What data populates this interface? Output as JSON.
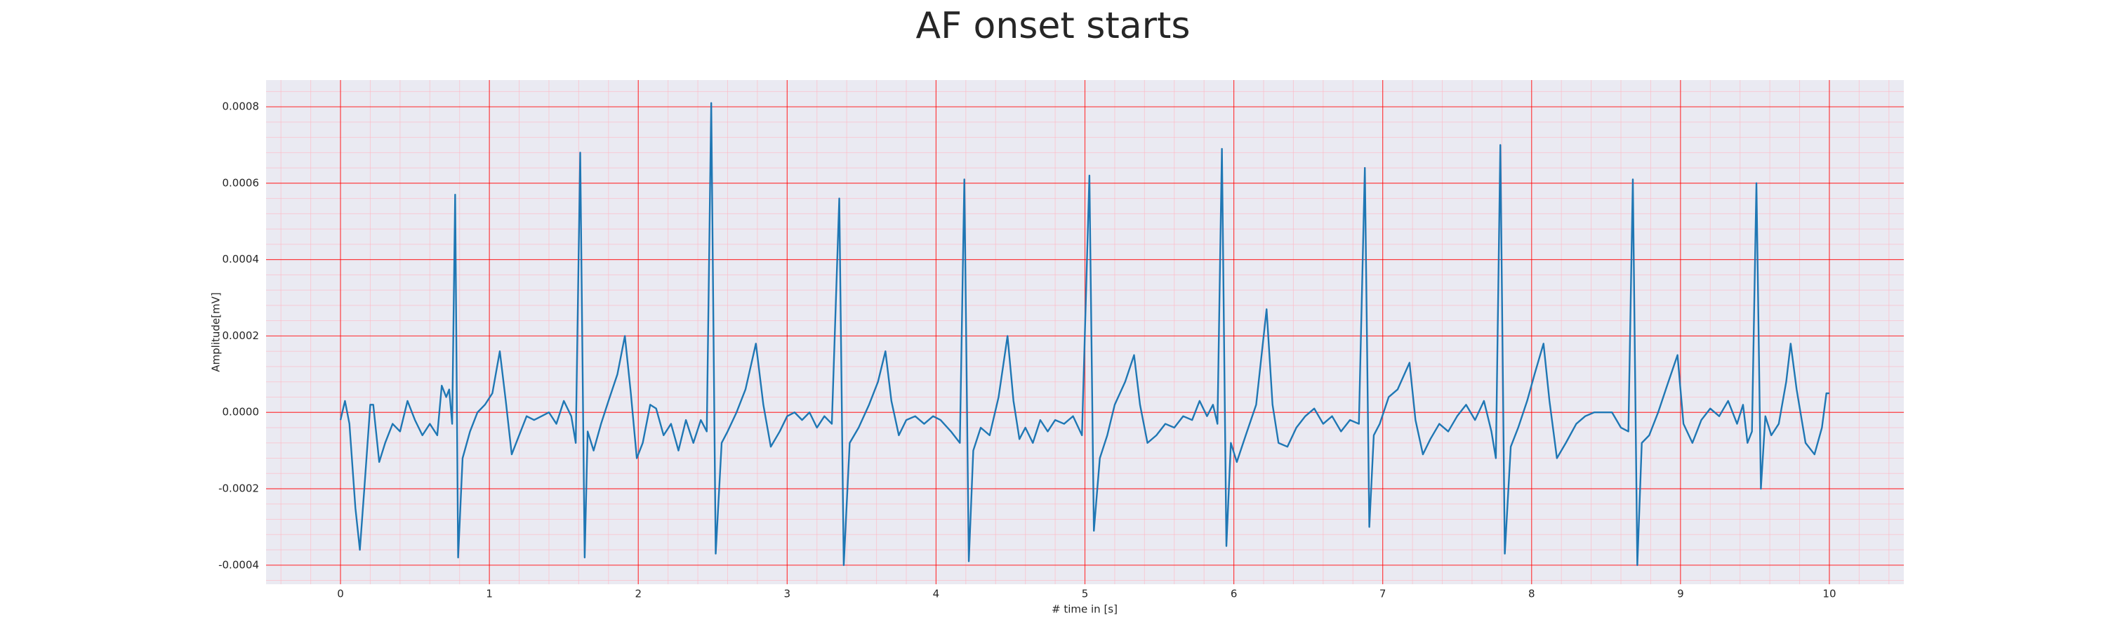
{
  "chart_data": {
    "type": "line",
    "title": "AF onset starts",
    "xlabel": "# time in [s]",
    "ylabel": "Amplitude[mV]",
    "color": "#1f77b4",
    "grid": true,
    "xlim": [
      -0.5,
      10.5
    ],
    "ylim": [
      -0.00045,
      0.00087
    ],
    "xticks": [
      0,
      1,
      2,
      3,
      4,
      5,
      6,
      7,
      8,
      9,
      10
    ],
    "yticks": [
      -0.0004,
      -0.0002,
      {
        "value": 0,
        "label": "0.0000"
      },
      0.0002,
      0.0004,
      0.0006,
      0.0008
    ],
    "x": [
      0.0,
      0.03,
      0.06,
      0.1,
      0.13,
      0.16,
      0.2,
      0.22,
      0.26,
      0.3,
      0.35,
      0.4,
      0.45,
      0.5,
      0.55,
      0.6,
      0.65,
      0.68,
      0.71,
      0.73,
      0.75,
      0.77,
      0.79,
      0.82,
      0.87,
      0.92,
      0.97,
      1.02,
      1.07,
      1.11,
      1.15,
      1.2,
      1.25,
      1.3,
      1.35,
      1.4,
      1.45,
      1.5,
      1.55,
      1.58,
      1.61,
      1.64,
      1.66,
      1.7,
      1.75,
      1.8,
      1.86,
      1.91,
      1.95,
      1.99,
      2.03,
      2.08,
      2.12,
      2.17,
      2.22,
      2.27,
      2.32,
      2.37,
      2.42,
      2.46,
      2.49,
      2.52,
      2.56,
      2.6,
      2.66,
      2.72,
      2.79,
      2.84,
      2.89,
      2.95,
      3.0,
      3.05,
      3.1,
      3.15,
      3.2,
      3.25,
      3.3,
      3.35,
      3.38,
      3.42,
      3.48,
      3.55,
      3.61,
      3.66,
      3.7,
      3.75,
      3.8,
      3.86,
      3.92,
      3.98,
      4.03,
      4.1,
      4.16,
      4.19,
      4.22,
      4.25,
      4.3,
      4.36,
      4.42,
      4.48,
      4.52,
      4.56,
      4.6,
      4.65,
      4.7,
      4.75,
      4.8,
      4.86,
      4.92,
      4.98,
      5.03,
      5.06,
      5.1,
      5.15,
      5.2,
      5.27,
      5.33,
      5.37,
      5.42,
      5.48,
      5.54,
      5.6,
      5.66,
      5.72,
      5.77,
      5.82,
      5.86,
      5.89,
      5.92,
      5.95,
      5.98,
      6.02,
      6.08,
      6.15,
      6.22,
      6.26,
      6.3,
      6.36,
      6.42,
      6.48,
      6.54,
      6.6,
      6.66,
      6.72,
      6.78,
      6.84,
      6.88,
      6.91,
      6.94,
      6.98,
      7.04,
      7.1,
      7.18,
      7.22,
      7.27,
      7.32,
      7.38,
      7.44,
      7.5,
      7.56,
      7.62,
      7.68,
      7.73,
      7.76,
      7.79,
      7.82,
      7.86,
      7.91,
      7.97,
      8.02,
      8.08,
      8.12,
      8.17,
      8.23,
      8.3,
      8.36,
      8.42,
      8.48,
      8.54,
      8.6,
      8.65,
      8.68,
      8.71,
      8.74,
      8.79,
      8.85,
      8.91,
      8.98,
      9.02,
      9.08,
      9.14,
      9.2,
      9.26,
      9.32,
      9.38,
      9.42,
      9.45,
      9.48,
      9.51,
      9.54,
      9.57,
      9.61,
      9.66,
      9.71,
      9.74,
      9.78,
      9.84,
      9.9,
      9.95,
      9.98,
      10.0
    ],
    "values": [
      -2e-05,
      3e-05,
      -3e-05,
      -0.00025,
      -0.00036,
      -0.0002,
      2e-05,
      2e-05,
      -0.00013,
      -8e-05,
      -3e-05,
      -5e-05,
      3e-05,
      -2e-05,
      -6e-05,
      -3e-05,
      -6e-05,
      7e-05,
      4e-05,
      6e-05,
      -3e-05,
      0.00057,
      -0.00038,
      -0.00012,
      -5e-05,
      0.0,
      2e-05,
      5e-05,
      0.00016,
      3e-05,
      -0.00011,
      -6e-05,
      -1e-05,
      -2e-05,
      -1e-05,
      0.0,
      -3e-05,
      3e-05,
      -1e-05,
      -8e-05,
      0.00068,
      -0.00038,
      -5e-05,
      -0.0001,
      -3e-05,
      3e-05,
      0.0001,
      0.0002,
      5e-05,
      -0.00012,
      -8e-05,
      2e-05,
      1e-05,
      -6e-05,
      -3e-05,
      -0.0001,
      -2e-05,
      -8e-05,
      -2e-05,
      -5e-05,
      0.00081,
      -0.00037,
      -8e-05,
      -5e-05,
      0.0,
      6e-05,
      0.00018,
      2e-05,
      -9e-05,
      -5e-05,
      -1e-05,
      0.0,
      -2e-05,
      0.0,
      -4e-05,
      -1e-05,
      -3e-05,
      0.00056,
      -0.0004,
      -8e-05,
      -4e-05,
      2e-05,
      8e-05,
      0.00016,
      3e-05,
      -6e-05,
      -2e-05,
      -1e-05,
      -3e-05,
      -1e-05,
      -2e-05,
      -5e-05,
      -8e-05,
      0.00061,
      -0.00039,
      -0.0001,
      -4e-05,
      -6e-05,
      4e-05,
      0.0002,
      3e-05,
      -7e-05,
      -4e-05,
      -8e-05,
      -2e-05,
      -5e-05,
      -2e-05,
      -3e-05,
      -1e-05,
      -6e-05,
      0.00062,
      -0.00031,
      -0.00012,
      -6e-05,
      2e-05,
      8e-05,
      0.00015,
      2e-05,
      -8e-05,
      -6e-05,
      -3e-05,
      -4e-05,
      -1e-05,
      -2e-05,
      3e-05,
      -1e-05,
      2e-05,
      -3e-05,
      0.00069,
      -0.00035,
      -8e-05,
      -0.00013,
      -6e-05,
      2e-05,
      0.00027,
      2e-05,
      -8e-05,
      -9e-05,
      -4e-05,
      -1e-05,
      1e-05,
      -3e-05,
      -1e-05,
      -5e-05,
      -2e-05,
      -3e-05,
      0.00064,
      -0.0003,
      -6e-05,
      -3e-05,
      4e-05,
      6e-05,
      0.00013,
      -2e-05,
      -0.00011,
      -7e-05,
      -3e-05,
      -5e-05,
      -1e-05,
      2e-05,
      -2e-05,
      3e-05,
      -5e-05,
      -0.00012,
      0.0007,
      -0.00037,
      -9e-05,
      -4e-05,
      3e-05,
      0.0001,
      0.00018,
      3e-05,
      -0.00012,
      -8e-05,
      -3e-05,
      -1e-05,
      0.0,
      0.0,
      0.0,
      -4e-05,
      -5e-05,
      0.00061,
      -0.0004,
      -8e-05,
      -6e-05,
      0.0,
      7e-05,
      0.00015,
      -3e-05,
      -8e-05,
      -2e-05,
      1e-05,
      -1e-05,
      3e-05,
      -3e-05,
      2e-05,
      -8e-05,
      -5e-05,
      0.0006,
      -0.0002,
      -1e-05,
      -6e-05,
      -3e-05,
      8e-05,
      0.00018,
      6e-05,
      -8e-05,
      -0.00011,
      -4e-05,
      5e-05,
      5e-05
    ]
  }
}
